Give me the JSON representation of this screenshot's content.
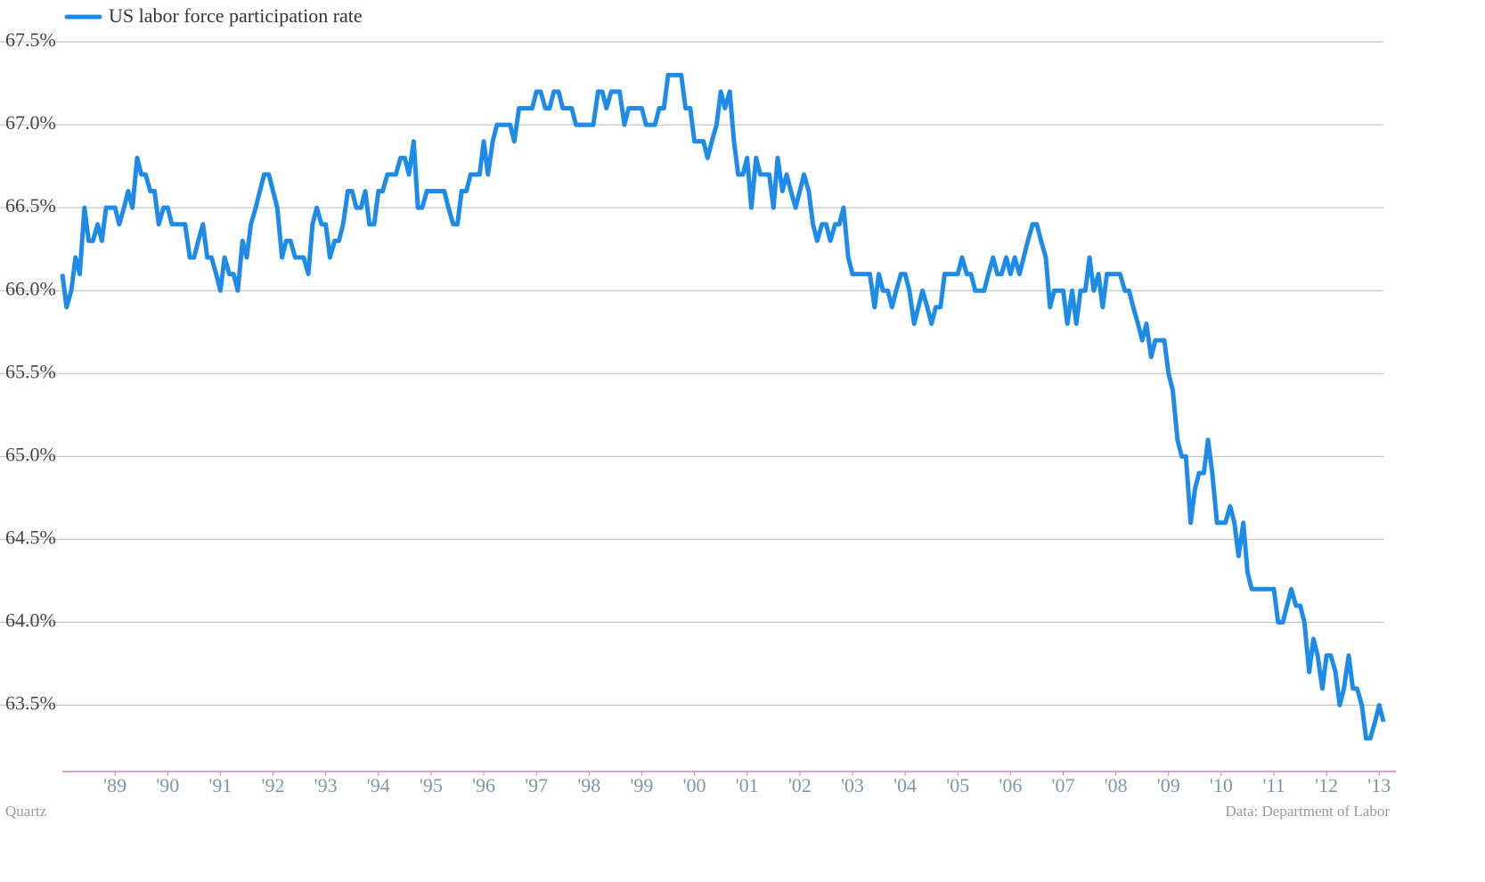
{
  "chart_data": {
    "type": "line",
    "legend": "top-left",
    "grid": true,
    "source": "Data: Department of Labor",
    "credit": "Quartz",
    "xlim": [
      1988,
      2013.08
    ],
    "ylim": [
      63.1,
      67.5
    ],
    "yticks": [
      {
        "value": 63.5,
        "label": "63.5%"
      },
      {
        "value": 64,
        "label": "64.0%"
      },
      {
        "value": 64.5,
        "label": "64.5%"
      },
      {
        "value": 65,
        "label": "65.0%"
      },
      {
        "value": 65.5,
        "label": "65.5%"
      },
      {
        "value": 66,
        "label": "66.0%"
      },
      {
        "value": 66.5,
        "label": "66.5%"
      },
      {
        "value": 67,
        "label": "67.0%"
      },
      {
        "value": 67.5,
        "label": "67.5%"
      }
    ],
    "xticks": [
      {
        "value": 1989,
        "label": "'89"
      },
      {
        "value": 1990,
        "label": "'90"
      },
      {
        "value": 1991,
        "label": "'91"
      },
      {
        "value": 1992,
        "label": "'92"
      },
      {
        "value": 1993,
        "label": "'93"
      },
      {
        "value": 1994,
        "label": "'94"
      },
      {
        "value": 1995,
        "label": "'95"
      },
      {
        "value": 1996,
        "label": "'96"
      },
      {
        "value": 1997,
        "label": "'97"
      },
      {
        "value": 1998,
        "label": "'98"
      },
      {
        "value": 1999,
        "label": "'99"
      },
      {
        "value": 2000,
        "label": "'00"
      },
      {
        "value": 2001,
        "label": "'01"
      },
      {
        "value": 2002,
        "label": "'02"
      },
      {
        "value": 2003,
        "label": "'03"
      },
      {
        "value": 2004,
        "label": "'04"
      },
      {
        "value": 2005,
        "label": "'05"
      },
      {
        "value": 2006,
        "label": "'06"
      },
      {
        "value": 2007,
        "label": "'07"
      },
      {
        "value": 2008,
        "label": "'08"
      },
      {
        "value": 2009,
        "label": "'09"
      },
      {
        "value": 2010,
        "label": "'10"
      },
      {
        "value": 2011,
        "label": "'11"
      },
      {
        "value": 2012,
        "label": "'12"
      },
      {
        "value": 2013,
        "label": "'13"
      }
    ],
    "x": [
      1988,
      1988.08,
      1988.17,
      1988.25,
      1988.33,
      1988.42,
      1988.5,
      1988.58,
      1988.67,
      1988.75,
      1988.83,
      1988.92,
      1989,
      1989.08,
      1989.17,
      1989.25,
      1989.33,
      1989.42,
      1989.5,
      1989.58,
      1989.67,
      1989.75,
      1989.83,
      1989.92,
      1990,
      1990.08,
      1990.17,
      1990.25,
      1990.33,
      1990.42,
      1990.5,
      1990.58,
      1990.67,
      1990.75,
      1990.83,
      1990.92,
      1991,
      1991.08,
      1991.17,
      1991.25,
      1991.33,
      1991.42,
      1991.5,
      1991.58,
      1991.67,
      1991.75,
      1991.83,
      1991.92,
      1992,
      1992.08,
      1992.17,
      1992.25,
      1992.33,
      1992.42,
      1992.5,
      1992.58,
      1992.67,
      1992.75,
      1992.83,
      1992.92,
      1993,
      1993.08,
      1993.17,
      1993.25,
      1993.33,
      1993.42,
      1993.5,
      1993.58,
      1993.67,
      1993.75,
      1993.83,
      1993.92,
      1994,
      1994.08,
      1994.17,
      1994.25,
      1994.33,
      1994.42,
      1994.5,
      1994.58,
      1994.67,
      1994.75,
      1994.83,
      1994.92,
      1995,
      1995.08,
      1995.17,
      1995.25,
      1995.33,
      1995.42,
      1995.5,
      1995.58,
      1995.67,
      1995.75,
      1995.83,
      1995.92,
      1996,
      1996.08,
      1996.17,
      1996.25,
      1996.33,
      1996.42,
      1996.5,
      1996.58,
      1996.67,
      1996.75,
      1996.83,
      1996.92,
      1997,
      1997.08,
      1997.17,
      1997.25,
      1997.33,
      1997.42,
      1997.5,
      1997.58,
      1997.67,
      1997.75,
      1997.83,
      1997.92,
      1998,
      1998.08,
      1998.17,
      1998.25,
      1998.33,
      1998.42,
      1998.5,
      1998.58,
      1998.67,
      1998.75,
      1998.83,
      1998.92,
      1999,
      1999.08,
      1999.17,
      1999.25,
      1999.33,
      1999.42,
      1999.5,
      1999.58,
      1999.67,
      1999.75,
      1999.83,
      1999.92,
      2000,
      2000.08,
      2000.17,
      2000.25,
      2000.33,
      2000.42,
      2000.5,
      2000.58,
      2000.67,
      2000.75,
      2000.83,
      2000.92,
      2001,
      2001.08,
      2001.17,
      2001.25,
      2001.33,
      2001.42,
      2001.5,
      2001.58,
      2001.67,
      2001.75,
      2001.83,
      2001.92,
      2002,
      2002.08,
      2002.17,
      2002.25,
      2002.33,
      2002.42,
      2002.5,
      2002.58,
      2002.67,
      2002.75,
      2002.83,
      2002.92,
      2003,
      2003.08,
      2003.17,
      2003.25,
      2003.33,
      2003.42,
      2003.5,
      2003.58,
      2003.67,
      2003.75,
      2003.83,
      2003.92,
      2004,
      2004.08,
      2004.17,
      2004.25,
      2004.33,
      2004.42,
      2004.5,
      2004.58,
      2004.67,
      2004.75,
      2004.83,
      2004.92,
      2005,
      2005.08,
      2005.17,
      2005.25,
      2005.33,
      2005.42,
      2005.5,
      2005.58,
      2005.67,
      2005.75,
      2005.83,
      2005.92,
      2006,
      2006.08,
      2006.17,
      2006.25,
      2006.33,
      2006.42,
      2006.5,
      2006.58,
      2006.67,
      2006.75,
      2006.83,
      2006.92,
      2007,
      2007.08,
      2007.17,
      2007.25,
      2007.33,
      2007.42,
      2007.5,
      2007.58,
      2007.67,
      2007.75,
      2007.83,
      2007.92,
      2008,
      2008.08,
      2008.17,
      2008.25,
      2008.33,
      2008.42,
      2008.5,
      2008.58,
      2008.67,
      2008.75,
      2008.83,
      2008.92,
      2009,
      2009.08,
      2009.17,
      2009.25,
      2009.33,
      2009.42,
      2009.5,
      2009.58,
      2009.67,
      2009.75,
      2009.83,
      2009.92,
      2010,
      2010.08,
      2010.17,
      2010.25,
      2010.33,
      2010.42,
      2010.5,
      2010.58,
      2010.67,
      2010.75,
      2010.83,
      2010.92,
      2011,
      2011.08,
      2011.17,
      2011.25,
      2011.33,
      2011.42,
      2011.5,
      2011.58,
      2011.67,
      2011.75,
      2011.83,
      2011.92,
      2012,
      2012.08,
      2012.17,
      2012.25,
      2012.33,
      2012.42,
      2012.5,
      2012.58,
      2012.67,
      2012.75,
      2012.83,
      2012.92,
      2013,
      2013.08
    ],
    "series": [
      {
        "name": "US labor force participation rate",
        "color": "#1f8be8",
        "values": [
          66.1,
          65.9,
          66.0,
          66.2,
          66.1,
          66.5,
          66.3,
          66.3,
          66.4,
          66.3,
          66.5,
          66.5,
          66.5,
          66.4,
          66.5,
          66.6,
          66.5,
          66.8,
          66.7,
          66.7,
          66.6,
          66.6,
          66.4,
          66.5,
          66.5,
          66.4,
          66.4,
          66.4,
          66.4,
          66.2,
          66.2,
          66.3,
          66.4,
          66.2,
          66.2,
          66.1,
          66.0,
          66.2,
          66.1,
          66.1,
          66.0,
          66.3,
          66.2,
          66.4,
          66.5,
          66.6,
          66.7,
          66.7,
          66.6,
          66.5,
          66.2,
          66.3,
          66.3,
          66.2,
          66.2,
          66.2,
          66.1,
          66.4,
          66.5,
          66.4,
          66.4,
          66.2,
          66.3,
          66.3,
          66.4,
          66.6,
          66.6,
          66.5,
          66.5,
          66.6,
          66.4,
          66.4,
          66.6,
          66.6,
          66.7,
          66.7,
          66.7,
          66.8,
          66.8,
          66.7,
          66.9,
          66.5,
          66.5,
          66.6,
          66.6,
          66.6,
          66.6,
          66.6,
          66.5,
          66.4,
          66.4,
          66.6,
          66.6,
          66.7,
          66.7,
          66.7,
          66.9,
          66.7,
          66.9,
          67.0,
          67.0,
          67.0,
          67.0,
          66.9,
          67.1,
          67.1,
          67.1,
          67.1,
          67.2,
          67.2,
          67.1,
          67.1,
          67.2,
          67.2,
          67.1,
          67.1,
          67.1,
          67.0,
          67.0,
          67.0,
          67.0,
          67.0,
          67.2,
          67.2,
          67.1,
          67.2,
          67.2,
          67.2,
          67.0,
          67.1,
          67.1,
          67.1,
          67.1,
          67.0,
          67.0,
          67.0,
          67.1,
          67.1,
          67.3,
          67.3,
          67.3,
          67.3,
          67.1,
          67.1,
          66.9,
          66.9,
          66.9,
          66.8,
          66.9,
          67.0,
          67.2,
          67.1,
          67.2,
          66.9,
          66.7,
          66.7,
          66.8,
          66.5,
          66.8,
          66.7,
          66.7,
          66.7,
          66.5,
          66.8,
          66.6,
          66.7,
          66.6,
          66.5,
          66.6,
          66.7,
          66.6,
          66.4,
          66.3,
          66.4,
          66.4,
          66.3,
          66.4,
          66.4,
          66.5,
          66.2,
          66.1,
          66.1,
          66.1,
          66.1,
          66.1,
          65.9,
          66.1,
          66.0,
          66.0,
          65.9,
          66.0,
          66.1,
          66.1,
          66.0,
          65.8,
          65.9,
          66.0,
          65.9,
          65.8,
          65.9,
          65.9,
          66.1,
          66.1,
          66.1,
          66.1,
          66.2,
          66.1,
          66.1,
          66.0,
          66.0,
          66.0,
          66.1,
          66.2,
          66.1,
          66.1,
          66.2,
          66.1,
          66.2,
          66.1,
          66.2,
          66.3,
          66.4,
          66.4,
          66.3,
          66.2,
          65.9,
          66.0,
          66.0,
          66.0,
          65.8,
          66.0,
          65.8,
          66.0,
          66.0,
          66.2,
          66.0,
          66.1,
          65.9,
          66.1,
          66.1,
          66.1,
          66.1,
          66.0,
          66.0,
          65.9,
          65.8,
          65.7,
          65.8,
          65.6,
          65.7,
          65.7,
          65.7,
          65.5,
          65.4,
          65.1,
          65.0,
          65.0,
          64.6,
          64.8,
          64.9,
          64.9,
          65.1,
          64.9,
          64.6,
          64.6,
          64.6,
          64.7,
          64.6,
          64.4,
          64.6,
          64.3,
          64.2,
          64.2,
          64.2,
          64.2,
          64.2,
          64.2,
          64.0,
          64.0,
          64.1,
          64.2,
          64.1,
          64.1,
          64.0,
          63.7,
          63.9,
          63.8,
          63.6,
          63.8,
          63.8,
          63.7,
          63.5,
          63.6,
          63.8,
          63.6,
          63.6,
          63.5,
          63.3,
          63.3,
          63.4,
          63.5,
          63.4
        ]
      }
    ]
  }
}
